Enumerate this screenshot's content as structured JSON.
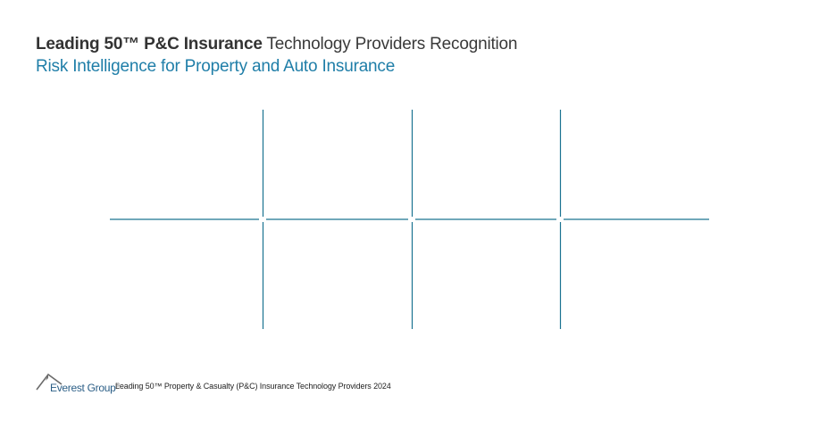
{
  "header": {
    "title_bold": "Leading 50™ P&C Insurance",
    "title_rest": " Technology Providers Recognition",
    "subtitle": "Risk Intelligence for Property and Auto Insurance"
  },
  "colors": {
    "accent": "#1f7ea8",
    "grid_line": "#1a7391"
  },
  "footer": {
    "logo_text": "Everest Group",
    "logo_mark": "®",
    "caption": "Leading 50™ Property & Casualty (P&C) Insurance Technology Providers 2024"
  }
}
